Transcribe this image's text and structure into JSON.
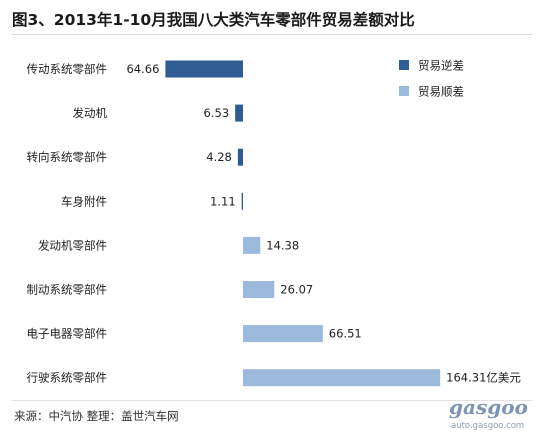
{
  "title": "图3、2013年1-10月我国八大类汽车零部件贸易差额对比",
  "source": "来源：中汽协  整理：盖世汽车网",
  "watermark": {
    "logo": "gasgoo",
    "url": "auto.gasgoo.com"
  },
  "colors": {
    "deficit": "#2f5d93",
    "surplus": "#9bb9da"
  },
  "chart_data": {
    "type": "bar",
    "orientation": "horizontal",
    "title": "图3、2013年1-10月我国八大类汽车零部件贸易差额对比",
    "unit": "亿美元",
    "legend": {
      "position": "top-right",
      "entries": [
        "贸易逆差",
        "贸易顺差"
      ]
    },
    "grid": false,
    "xlim": [
      -80,
      170
    ],
    "categories": [
      "传动系统零部件",
      "发动机",
      "转向系统零部件",
      "车身附件",
      "发动机零部件",
      "制动系统零部件",
      "电子电器零部件",
      "行驶系统零部件"
    ],
    "values": [
      -64.66,
      -6.53,
      -4.28,
      -1.11,
      14.38,
      26.07,
      66.51,
      164.31
    ],
    "value_labels": [
      "64.66",
      "6.53",
      "4.28",
      "1.11",
      "14.38",
      "26.07",
      "66.51",
      "164.31亿美元"
    ],
    "series": [
      {
        "name": "贸易逆差",
        "values": [
          64.66,
          6.53,
          4.28,
          1.11,
          null,
          null,
          null,
          null
        ]
      },
      {
        "name": "贸易顺差",
        "values": [
          null,
          null,
          null,
          null,
          14.38,
          26.07,
          66.51,
          164.31
        ]
      }
    ]
  }
}
